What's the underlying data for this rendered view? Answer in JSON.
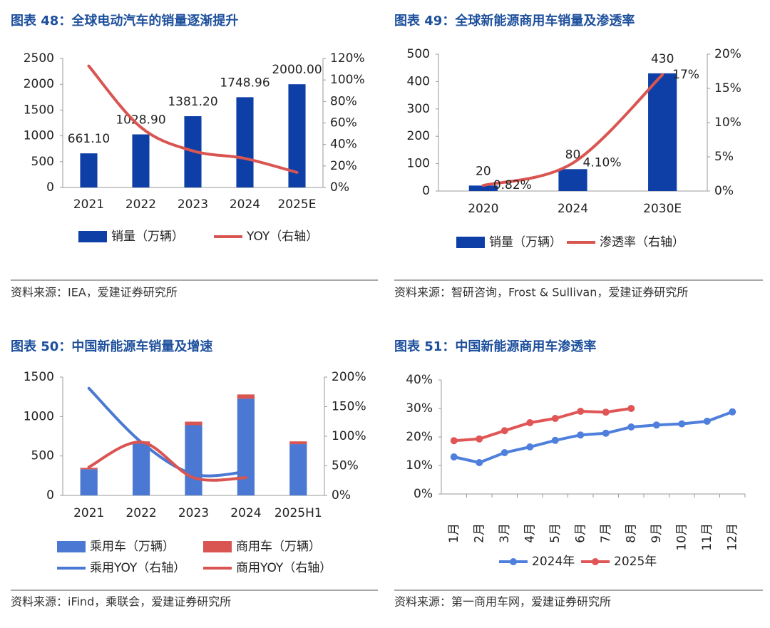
{
  "chart_data": [
    {
      "type": "combo",
      "title": "图表 48：全球电动汽车的销量逐渐提升",
      "source": "资料来源：IEA，爱建证券研究所",
      "smooth": true,
      "stacked": false,
      "categories": [
        "2021",
        "2022",
        "2023",
        "2024",
        "2025E"
      ],
      "series": [
        {
          "name": "销量（万辆）",
          "type": "bar",
          "color": "#0d3fa6",
          "values": [
            661.1,
            1028.9,
            1381.2,
            1748.96,
            2000
          ],
          "value_labels": [
            "661.10",
            "1028.90",
            "1381.20",
            "1748.96",
            "2000.00"
          ]
        },
        {
          "name": "YOY（右轴）",
          "type": "line",
          "axis": "y2",
          "color": "#d95552",
          "values": [
            113,
            56,
            34,
            27,
            14
          ]
        }
      ],
      "ylim": [
        0,
        2500
      ],
      "yticks": [
        0,
        500,
        1000,
        1500,
        2000,
        2500
      ],
      "y2lim": [
        0,
        120
      ],
      "y2ticks": [
        {
          "value": 0,
          "label": "0%"
        },
        {
          "value": 20,
          "label": "20%"
        },
        {
          "value": 40,
          "label": "40%"
        },
        {
          "value": 60,
          "label": "60%"
        },
        {
          "value": 80,
          "label": "80%"
        },
        {
          "value": 100,
          "label": "100%"
        },
        {
          "value": 120,
          "label": "120%"
        }
      ]
    },
    {
      "type": "combo",
      "title": "图表 49：全球新能源商用车销量及渗透率",
      "source": "资料来源：智研咨询，Frost & Sullivan，爱建证券研究所",
      "smooth": true,
      "stacked": false,
      "categories": [
        "2020",
        "2024",
        "2030E"
      ],
      "series": [
        {
          "name": "销量（万辆）",
          "type": "bar",
          "color": "#0d3fa6",
          "values": [
            20,
            80,
            430
          ]
        },
        {
          "name": "渗透率（右轴）",
          "type": "line",
          "axis": "y2",
          "color": "#d95552",
          "values": [
            0.82,
            4.1,
            17
          ],
          "value_labels": [
            "0.82%",
            "4.10%",
            "17%"
          ]
        }
      ],
      "ylim": [
        0,
        500
      ],
      "yticks": [
        0,
        100,
        200,
        300,
        400,
        500
      ],
      "y2lim": [
        0,
        20
      ],
      "y2ticks": [
        {
          "value": 0,
          "label": "0%"
        },
        {
          "value": 5,
          "label": "5%"
        },
        {
          "value": 10,
          "label": "10%"
        },
        {
          "value": 15,
          "label": "15%"
        },
        {
          "value": 20,
          "label": "20%"
        }
      ]
    },
    {
      "type": "combo",
      "title": "图表 50：中国新能源车销量及增速",
      "source": "资料来源：iFind，乘联会，爱建证券研究所",
      "smooth": true,
      "stacked": true,
      "categories": [
        "2021",
        "2022",
        "2023",
        "2024",
        "2025H1"
      ],
      "series": [
        {
          "name": "乘用车（万辆）",
          "type": "bar",
          "color": "#4a78d2",
          "values": [
            331,
            655,
            890,
            1225,
            650
          ]
        },
        {
          "name": "商用车（万辆）",
          "type": "bar",
          "color": "#d95552",
          "values": [
            19,
            30,
            45,
            55,
            35
          ]
        },
        {
          "name": "乘用YOY（右轴）",
          "type": "line",
          "axis": "y2",
          "color": "#4a78d2",
          "values": [
            181,
            90,
            36,
            40,
            null
          ]
        },
        {
          "name": "商用YOY（右轴）",
          "type": "line",
          "axis": "y2",
          "color": "#d95552",
          "values": [
            48,
            90,
            30,
            30,
            null
          ]
        }
      ],
      "ylim": [
        0,
        1500
      ],
      "yticks": [
        0,
        500,
        1000,
        1500
      ],
      "y2lim": [
        0,
        200
      ],
      "y2ticks": [
        {
          "value": 0,
          "label": "0%"
        },
        {
          "value": 50,
          "label": "50%"
        },
        {
          "value": 100,
          "label": "100%"
        },
        {
          "value": 150,
          "label": "150%"
        },
        {
          "value": 200,
          "label": "200%"
        }
      ]
    },
    {
      "type": "line",
      "title": "图表 51：中国新能源商用车渗透率",
      "source": "资料来源：第一商用车网，爱建证券研究所",
      "smooth": false,
      "markers": true,
      "categories": [
        "1月",
        "2月",
        "3月",
        "4月",
        "5月",
        "6月",
        "7月",
        "8月",
        "9月",
        "10月",
        "11月",
        "12月"
      ],
      "series": [
        {
          "name": "2024年",
          "color": "#4f7fdc",
          "values": [
            13,
            11,
            14.5,
            16.5,
            18.8,
            20.7,
            21.3,
            23.5,
            24.2,
            24.6,
            25.5,
            28.8
          ]
        },
        {
          "name": "2025年",
          "color": "#e05656",
          "values": [
            18.7,
            19.3,
            22.2,
            25,
            26.5,
            29,
            28.7,
            30,
            null,
            null,
            null,
            null
          ]
        }
      ],
      "ylim": [
        0,
        40
      ],
      "yticks": [
        {
          "value": 0,
          "label": "0%"
        },
        {
          "value": 10,
          "label": "10%"
        },
        {
          "value": 20,
          "label": "20%"
        },
        {
          "value": 30,
          "label": "30%"
        },
        {
          "value": 40,
          "label": "40%"
        }
      ]
    }
  ]
}
